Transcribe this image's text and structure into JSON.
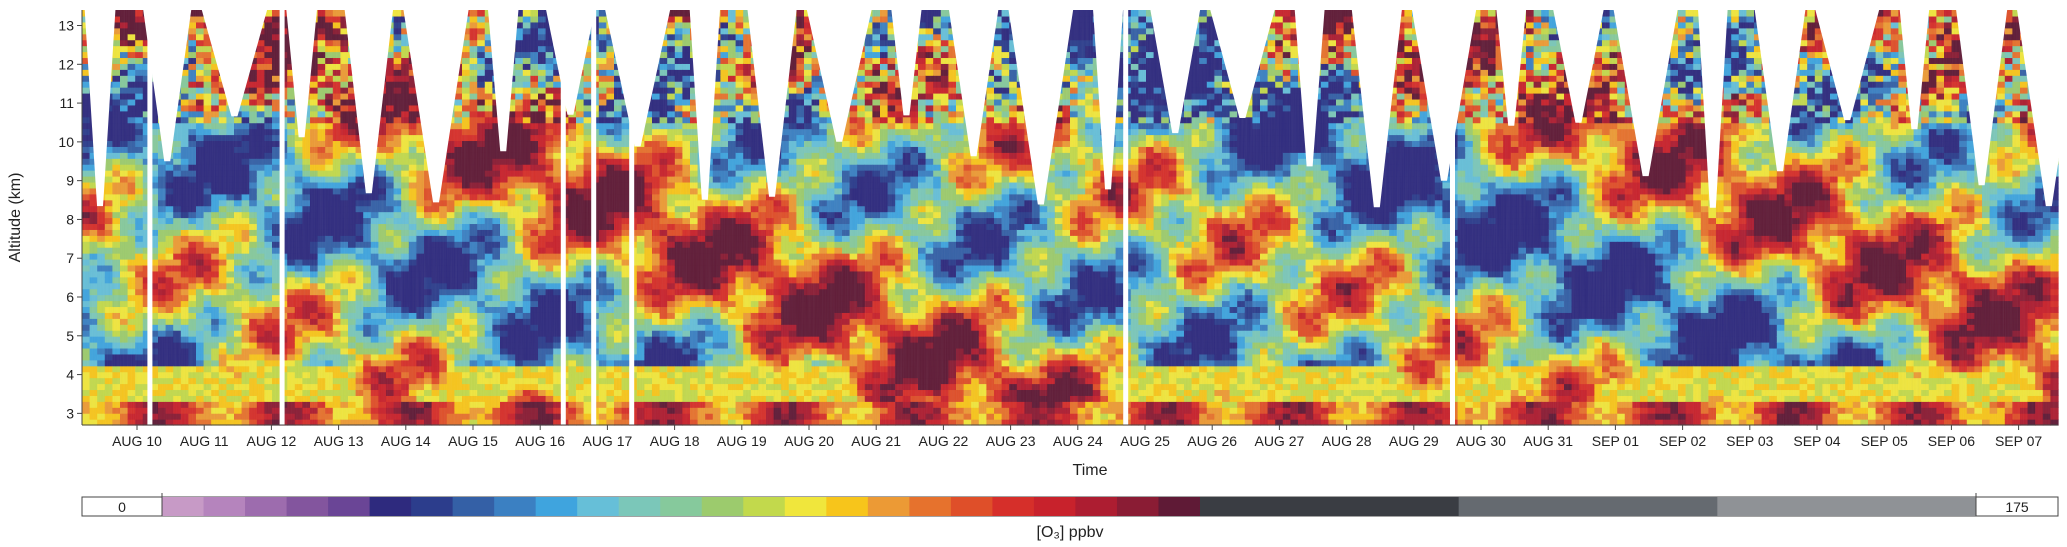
{
  "chart_data": {
    "type": "heatmap",
    "title": "",
    "xlabel": "Time",
    "ylabel": "Altitude (km)",
    "y_ticks": [
      3,
      4,
      5,
      6,
      7,
      8,
      9,
      10,
      11,
      12,
      13
    ],
    "ylim": [
      2.7,
      13.4
    ],
    "x_ticks": [
      "AUG 10",
      "AUG 11",
      "AUG 12",
      "AUG 13",
      "AUG 14",
      "AUG 15",
      "AUG 16",
      "AUG 17",
      "AUG 18",
      "AUG 19",
      "AUG 20",
      "AUG 21",
      "AUG 22",
      "AUG 23",
      "AUG 24",
      "AUG 25",
      "AUG 26",
      "AUG 27",
      "AUG 28",
      "AUG 29",
      "AUG 30",
      "AUG 31",
      "SEP 01",
      "SEP 02",
      "SEP 03",
      "SEP 04",
      "SEP 05",
      "SEP 06",
      "SEP 07"
    ],
    "colorbar": {
      "label": "[O₃] ppbv",
      "min_label": "0",
      "max_label": "175",
      "colors": [
        "#c79ac6",
        "#b584bd",
        "#9d6cae",
        "#83559e",
        "#6a4596",
        "#2e2a7e",
        "#2c3d8c",
        "#3460a6",
        "#3b80c2",
        "#3fa4de",
        "#66bfd8",
        "#7bc7b9",
        "#86c99c",
        "#9ccb6d",
        "#c2d94c",
        "#f0e63c",
        "#f7c51b",
        "#ec9a35",
        "#e6722d",
        "#df4f29",
        "#d62f2a",
        "#c8222c",
        "#ad1d31",
        "#8a1c34",
        "#5f1a36",
        "#3a3d43",
        "#656a70",
        "#8f9296"
      ]
    },
    "gaps": [
      4.3,
      13.0,
      31.5,
      33.5,
      36.0,
      68.5,
      90.0
    ],
    "data_range": [
      2.7,
      13.4
    ]
  }
}
